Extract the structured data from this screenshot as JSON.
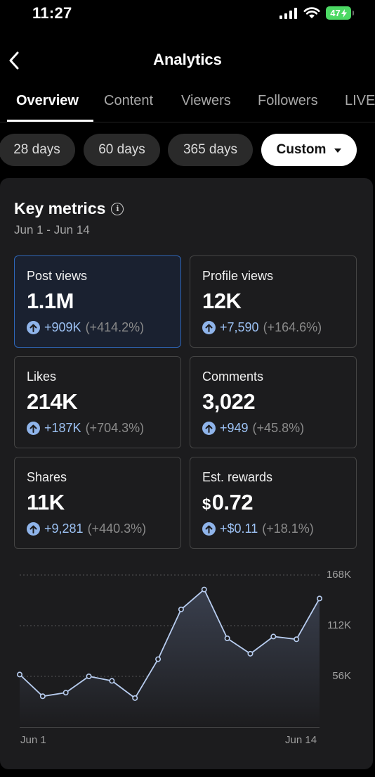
{
  "status": {
    "time": "11:27",
    "battery": "47"
  },
  "header": {
    "title": "Analytics"
  },
  "tabs": [
    {
      "label": "Overview"
    },
    {
      "label": "Content"
    },
    {
      "label": "Viewers"
    },
    {
      "label": "Followers"
    },
    {
      "label": "LIVE"
    }
  ],
  "ranges": [
    {
      "label": "28 days"
    },
    {
      "label": "60 days"
    },
    {
      "label": "365 days"
    },
    {
      "label": "Custom",
      "selected": true
    }
  ],
  "key_metrics": {
    "title": "Key metrics",
    "date_range": "Jun 1 - Jun 14",
    "items": [
      {
        "label": "Post views",
        "value": "1.1M",
        "delta": "+909K",
        "pct": "(+414.2%)"
      },
      {
        "label": "Profile views",
        "value": "12K",
        "delta": "+7,590",
        "pct": "(+164.6%)"
      },
      {
        "label": "Likes",
        "value": "214K",
        "delta": "+187K",
        "pct": "(+704.3%)"
      },
      {
        "label": "Comments",
        "value": "3,022",
        "delta": "+949",
        "pct": "(+45.8%)"
      },
      {
        "label": "Shares",
        "value": "11K",
        "delta": "+9,281",
        "pct": "(+440.3%)"
      },
      {
        "label": "Est. rewards",
        "value_prefix": "$",
        "value": "0.72",
        "delta": "+$0.11",
        "pct": "(+18.1%)"
      }
    ]
  },
  "chart_data": {
    "type": "area",
    "x": [
      "Jun 1",
      "Jun 2",
      "Jun 3",
      "Jun 4",
      "Jun 5",
      "Jun 6",
      "Jun 7",
      "Jun 8",
      "Jun 9",
      "Jun 10",
      "Jun 11",
      "Jun 12",
      "Jun 13",
      "Jun 14"
    ],
    "x_tick_labels": [
      "Jun 1",
      "Jun 14"
    ],
    "series": [
      {
        "values": [
          58,
          34,
          38,
          56,
          51,
          32,
          75,
          130,
          152,
          98,
          81,
          100,
          97,
          142
        ]
      }
    ],
    "y_ticks": [
      "168K",
      "112K",
      "56K"
    ],
    "y_tick_values": [
      168,
      112,
      56
    ],
    "ylim": [
      0,
      168
    ],
    "grid": "dotted horizontal",
    "colors": {
      "line": "#b8cdf0",
      "point_fill": "#1c1c1e",
      "area_top": "#3b4150",
      "area_bottom": "#1c1c1e",
      "grid": "#555555"
    }
  }
}
